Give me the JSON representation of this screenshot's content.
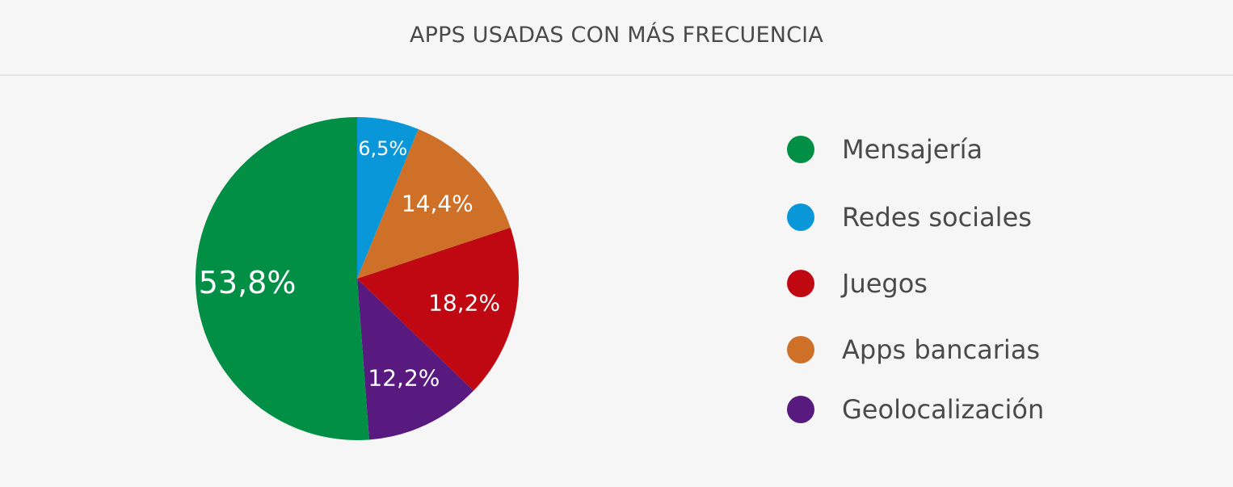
{
  "title": "APPS USADAS CON MÁS FRECUENCIA",
  "chart_data": {
    "type": "pie",
    "title": "APPS USADAS CON MÁS FRECUENCIA",
    "slices": [
      {
        "label": "Redes sociales",
        "value": 6.5,
        "display": "6,5%",
        "color": "#0a97d9"
      },
      {
        "label": "Apps bancarias",
        "value": 14.4,
        "display": "14,4%",
        "color": "#cf7028"
      },
      {
        "label": "Juegos",
        "value": 18.2,
        "display": "18,2%",
        "color": "#c00812"
      },
      {
        "label": "Geolocalización",
        "value": 12.2,
        "display": "12,2%",
        "color": "#581a7e"
      },
      {
        "label": "Mensajería",
        "value": 53.8,
        "display": "53,8%",
        "color": "#008f45"
      }
    ],
    "legend": {
      "placement": "right",
      "items": [
        {
          "label": "Mensajería",
          "color": "#008f45"
        },
        {
          "label": "Redes sociales",
          "color": "#0a97d9"
        },
        {
          "label": "Juegos",
          "color": "#c00812"
        },
        {
          "label": "Apps bancarias",
          "color": "#cf7028"
        },
        {
          "label": "Geolocalización",
          "color": "#581a7e"
        }
      ]
    }
  }
}
